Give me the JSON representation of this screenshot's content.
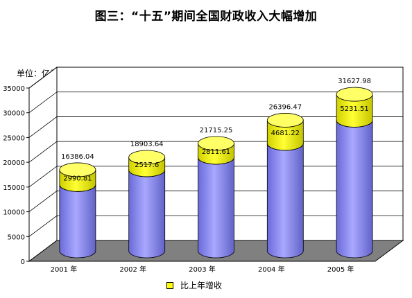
{
  "chart_data": {
    "type": "bar",
    "title": "图三：“十五”期间全国财政收入大幅增加",
    "unit_label": "单位：亿元",
    "categories": [
      "2001 年",
      "2002 年",
      "2003 年",
      "2004 年",
      "2005 年"
    ],
    "series": [
      {
        "name": "",
        "role": "previous-year",
        "color": "#9999ff",
        "values": [
          13395.23,
          16386.04,
          18903.64,
          21715.25,
          26396.47
        ]
      },
      {
        "name": "比上年增收",
        "role": "increase",
        "color": "#ffff00",
        "values": [
          2990.81,
          2517.6,
          2811.61,
          4681.22,
          5231.51
        ]
      }
    ],
    "totals": [
      16386.04,
      18903.64,
      21715.25,
      26396.47,
      31627.98
    ],
    "increase_labels": [
      "2990.81",
      "2517.6",
      "2811.61",
      "4681.22",
      "5231.51"
    ],
    "total_labels": [
      "16386.04",
      "18903.64",
      "21715.25",
      "26396.47",
      "31627.98"
    ],
    "ylim": [
      0,
      35000
    ],
    "yticks": [
      0,
      5000,
      10000,
      15000,
      20000,
      25000,
      30000,
      35000
    ],
    "grid": true,
    "legend_position": "bottom"
  }
}
